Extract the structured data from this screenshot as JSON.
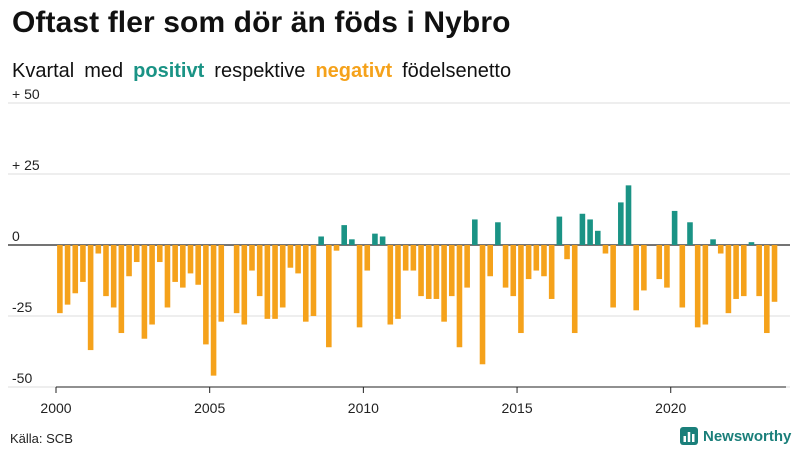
{
  "title": "Oftast fler som dör än föds i Nybro",
  "subtitle": {
    "w1": "Kvartal",
    "w2": "med",
    "positive": "positivt",
    "w3": "respektive",
    "negative": "negativt",
    "w4": "födelsenetto"
  },
  "colors": {
    "positive": "#1a9385",
    "negative": "#f5a21b",
    "gridline": "#dddddd",
    "zeroline": "#222222",
    "brand": "#1a7f7a"
  },
  "source": "Källa: SCB",
  "brand": {
    "name": "Newsworthy",
    "icon": "bar-chart-icon"
  },
  "chart_data": {
    "type": "bar",
    "title": "Oftast fler som dör än föds i Nybro",
    "subtitle": "Kvartal med positivt respektive negativt födelsenetto",
    "x_start": 2000,
    "x_step": 0.25,
    "xlim": [
      2000,
      2023.75
    ],
    "ylim": [
      -50,
      50
    ],
    "yticks": [
      50,
      25,
      0,
      -25,
      -50
    ],
    "ytick_labels": [
      "+ 50",
      "+ 25",
      "0",
      "-25",
      "-50"
    ],
    "xticks": [
      2000,
      2005,
      2010,
      2015,
      2020
    ],
    "xtick_labels": [
      "2000",
      "2005",
      "2010",
      "2015",
      "2020"
    ],
    "grid": true,
    "values": [
      -24,
      -21,
      -17,
      -13,
      -37,
      -3,
      -18,
      -22,
      -31,
      -11,
      -6,
      -33,
      -28,
      -6,
      -22,
      -13,
      -15,
      -10,
      -14,
      -35,
      -46,
      -27,
      0,
      -24,
      -28,
      -9,
      -18,
      -26,
      -26,
      -22,
      -8,
      -10,
      -27,
      -25,
      3,
      -36,
      -2,
      7,
      2,
      -29,
      -9,
      4,
      3,
      -28,
      -26,
      -9,
      -9,
      -18,
      -19,
      -19,
      -27,
      -18,
      -36,
      -15,
      9,
      -42,
      -11,
      8,
      -15,
      -18,
      -31,
      -12,
      -9,
      -11,
      -19,
      10,
      -5,
      -31,
      11,
      9,
      5,
      -3,
      -22,
      15,
      21,
      -23,
      -16,
      0,
      -12,
      -15,
      12,
      -22,
      8,
      -29,
      -28,
      2,
      -3,
      -24,
      -19,
      -18,
      1,
      -18,
      -31,
      -20
    ]
  }
}
